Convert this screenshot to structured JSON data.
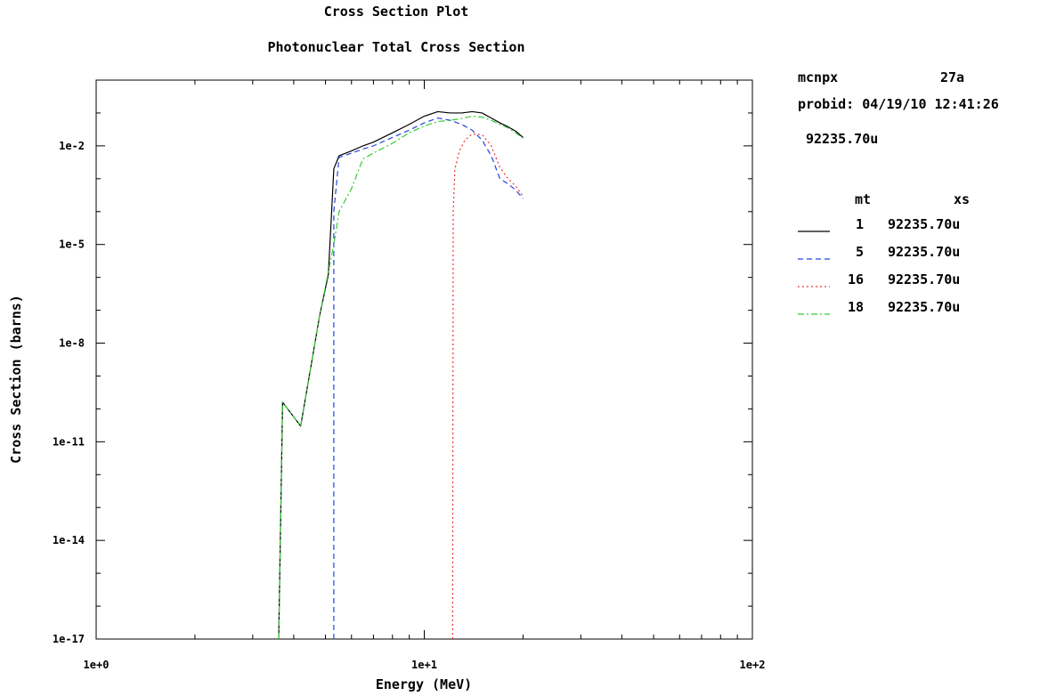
{
  "info": {
    "code": "mcnpx",
    "version": "27a",
    "probid": "probid: 04/19/10 12:41:26",
    "material": "92235.70u"
  },
  "legend_header": {
    "mt": "mt",
    "xs": "xs"
  },
  "chart_data": {
    "type": "line",
    "title": "Cross Section Plot",
    "subtitle": "Photonuclear Total Cross Section",
    "xlabel": "Energy (MeV)",
    "ylabel": "Cross Section (barns)",
    "xscale": "log",
    "yscale": "log",
    "xlim": [
      1,
      100
    ],
    "ylim": [
      1e-17,
      1
    ],
    "xticks": [
      {
        "value": 1,
        "label": "1e+0"
      },
      {
        "value": 10,
        "label": "1e+1"
      },
      {
        "value": 100,
        "label": "1e+2"
      }
    ],
    "yticks": [
      {
        "value": 1e-17,
        "label": "1e-17"
      },
      {
        "value": 1e-14,
        "label": "1e-14"
      },
      {
        "value": 1e-11,
        "label": "1e-11"
      },
      {
        "value": 1e-08,
        "label": "1e-8"
      },
      {
        "value": 1e-05,
        "label": "1e-5"
      },
      {
        "value": 0.01,
        "label": "1e-2"
      }
    ],
    "grid": false,
    "legend_position": "right",
    "series": [
      {
        "mt": "1",
        "xs": "92235.70u",
        "color": "#000000",
        "style": "solid",
        "x": [
          3.6,
          3.7,
          4.2,
          4.8,
          5.1,
          5.22,
          5.3,
          5.5,
          6,
          6.5,
          7,
          8,
          9,
          10,
          11,
          12,
          13,
          14,
          15,
          16,
          17,
          18,
          19,
          20
        ],
        "y": [
          1e-17,
          1.6e-10,
          3e-11,
          7e-08,
          1.2e-06,
          0.0001,
          0.002,
          0.005,
          0.007,
          0.01,
          0.013,
          0.025,
          0.045,
          0.08,
          0.11,
          0.1,
          0.1,
          0.11,
          0.1,
          0.07,
          0.05,
          0.038,
          0.028,
          0.018
        ]
      },
      {
        "mt": "5",
        "xs": "92235.70u",
        "color": "#2244dd",
        "style": "dashed",
        "x": [
          5.3,
          5.3,
          5.5,
          6,
          6.5,
          7,
          8,
          9,
          10,
          11,
          12,
          13,
          14,
          15,
          16,
          17,
          18,
          19,
          20
        ],
        "y": [
          1e-17,
          0.0001,
          0.0045,
          0.006,
          0.008,
          0.01,
          0.018,
          0.03,
          0.05,
          0.07,
          0.06,
          0.045,
          0.03,
          0.015,
          0.005,
          0.001,
          0.0007,
          0.00045,
          0.00025
        ]
      },
      {
        "mt": "16",
        "xs": "92235.70u",
        "color": "#ee3333",
        "style": "dotted",
        "x": [
          12.2,
          12.25,
          12.4,
          12.8,
          13.3,
          14,
          15,
          16,
          17,
          18,
          19,
          20
        ],
        "y": [
          1e-17,
          0.0001,
          0.002,
          0.007,
          0.015,
          0.023,
          0.022,
          0.01,
          0.0022,
          0.001,
          0.0006,
          0.00029
        ]
      },
      {
        "mt": "18",
        "xs": "92235.70u",
        "color": "#33cc33",
        "style": "dashdot",
        "x": [
          3.6,
          3.7,
          4.2,
          4.8,
          5.3,
          5.5,
          6,
          6.5,
          7,
          8,
          9,
          10,
          11,
          12,
          13,
          14,
          15,
          16,
          17,
          18,
          19,
          20
        ],
        "y": [
          1e-17,
          1.6e-10,
          3e-11,
          7e-08,
          1e-05,
          0.0001,
          0.0005,
          0.004,
          0.006,
          0.012,
          0.025,
          0.04,
          0.055,
          0.06,
          0.068,
          0.08,
          0.075,
          0.06,
          0.045,
          0.035,
          0.025,
          0.017
        ]
      }
    ]
  }
}
